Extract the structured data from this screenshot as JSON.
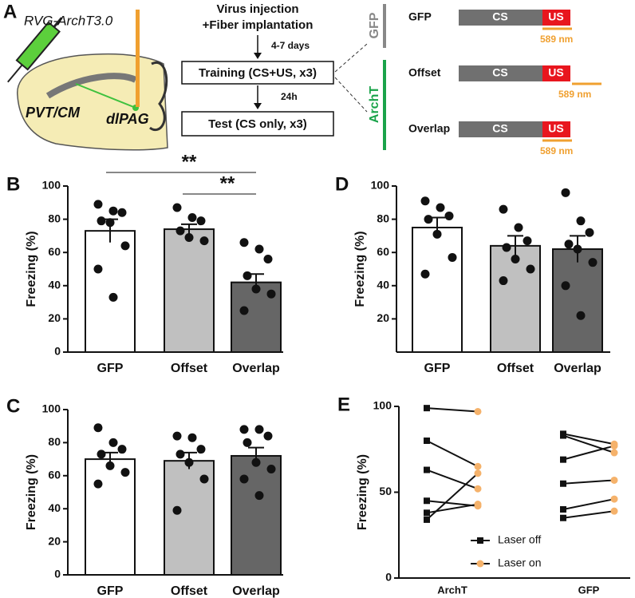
{
  "diagram": {
    "panel": "A",
    "virus": "RVG-ArchT3.0",
    "regions": [
      "PVT/CM",
      "dlPAG"
    ],
    "steps": [
      "Virus injection",
      "+Fiber implantation",
      "Training (CS+US, x3)",
      "Test (CS only, x3)"
    ],
    "intervals": [
      "4-7 days",
      "24h"
    ],
    "groups": [
      "GFP",
      "ArchT"
    ],
    "protocols": [
      {
        "name": "GFP",
        "cs": "CS",
        "us": "US",
        "laser": "589 nm"
      },
      {
        "name": "Offset",
        "cs": "CS",
        "us": "US",
        "laser": "589 nm"
      },
      {
        "name": "Overlap",
        "cs": "CS",
        "us": "US",
        "laser": "589 nm"
      }
    ]
  },
  "chart_data": [
    {
      "type": "bar",
      "panel": "B",
      "ylabel": "Freezing (%)",
      "categories": [
        "GFP",
        "Offset",
        "Overlap"
      ],
      "colors": [
        "#ffffff",
        "#c0c0c0",
        "#666666"
      ],
      "values": [
        73,
        74,
        42
      ],
      "errors": [
        7,
        3,
        5
      ],
      "points": [
        [
          89,
          85,
          84,
          79,
          78,
          64,
          50,
          33
        ],
        [
          87,
          81,
          79,
          73,
          69,
          67
        ],
        [
          66,
          62,
          56,
          46,
          38,
          35,
          25
        ]
      ],
      "ylim": [
        0,
        100
      ],
      "yticks": [
        0,
        20,
        40,
        60,
        80,
        100
      ],
      "annotations": [
        {
          "text": "**",
          "from": 0,
          "to": 2
        },
        {
          "text": "**",
          "from": 1,
          "to": 2
        }
      ]
    },
    {
      "type": "bar",
      "panel": "D",
      "ylabel": "Freezing (%)",
      "categories": [
        "GFP",
        "Offset",
        "Overlap"
      ],
      "colors": [
        "#ffffff",
        "#c0c0c0",
        "#666666"
      ],
      "values": [
        75,
        64,
        62
      ],
      "errors": [
        6,
        6,
        8
      ],
      "points": [
        [
          91,
          87,
          82,
          80,
          71,
          57,
          47
        ],
        [
          86,
          75,
          67,
          63,
          56,
          50,
          43
        ],
        [
          96,
          79,
          72,
          65,
          62,
          54,
          40,
          22
        ]
      ],
      "ylim": [
        0,
        100
      ],
      "yticks": [
        20,
        40,
        60,
        80,
        100
      ]
    },
    {
      "type": "bar",
      "panel": "C",
      "ylabel": "Freezing (%)",
      "categories": [
        "GFP",
        "Offset",
        "Overlap"
      ],
      "colors": [
        "#ffffff",
        "#c0c0c0",
        "#666666"
      ],
      "values": [
        70,
        69,
        72
      ],
      "errors": [
        4,
        5,
        5
      ],
      "points": [
        [
          89,
          80,
          76,
          73,
          66,
          62,
          55
        ],
        [
          84,
          83,
          76,
          73,
          68,
          58,
          39
        ],
        [
          88,
          88,
          84,
          80,
          68,
          64,
          58,
          48
        ]
      ],
      "ylim": [
        0,
        100
      ],
      "yticks": [
        0,
        20,
        40,
        60,
        80,
        100
      ]
    },
    {
      "type": "pairs",
      "panel": "E",
      "ylabel": "Freezing (%)",
      "categories": [
        "ArchT",
        "GFP"
      ],
      "series": [
        {
          "name": "Laser off",
          "color": "#111111",
          "values": [
            [
              99,
              80,
              63,
              45,
              38,
              34
            ],
            [
              84,
              83,
              69,
              55,
              40,
              35
            ]
          ]
        },
        {
          "name": "Laser on",
          "color": "#f5b26b",
          "values": [
            [
              97,
              65,
              52,
              42,
              43,
              61
            ],
            [
              78,
              73,
              77,
              57,
              46,
              39
            ]
          ]
        }
      ],
      "ylim": [
        0,
        100
      ],
      "yticks": [
        0,
        50,
        100
      ]
    }
  ]
}
